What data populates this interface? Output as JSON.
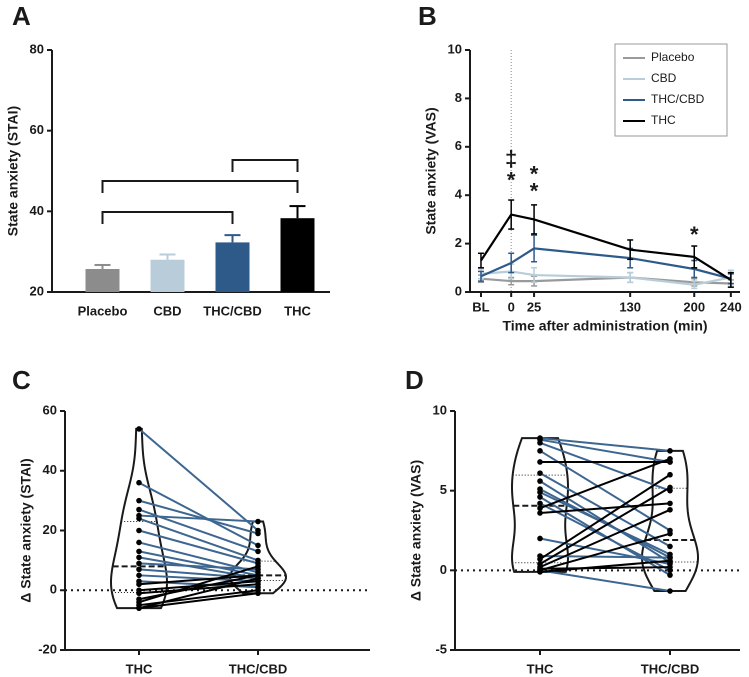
{
  "chart_data": [
    {
      "type": "bar",
      "label": "A",
      "ylabel": "State anxiety (STAI)",
      "categories": [
        "Placebo",
        "CBD",
        "THC/CBD",
        "THC"
      ],
      "values": [
        25.7,
        28,
        32.3,
        38.3
      ],
      "errors": [
        1,
        1.3,
        1.8,
        3
      ],
      "colors": [
        "#8c8c8c",
        "#b8cdd9",
        "#2e5a8a",
        "#000000"
      ],
      "ylim": [
        20,
        80
      ],
      "yticks": [
        20,
        40,
        60,
        80
      ]
    },
    {
      "type": "line",
      "label": "B",
      "ylabel": "State anxiety (VAS)",
      "xlabel": "Time after administration (min)",
      "x": [
        -33,
        0,
        25,
        130,
        200,
        240
      ],
      "xlim": [
        -45,
        250
      ],
      "xticks": [
        {
          "value": -33,
          "label": "BL"
        },
        0,
        25,
        130,
        200,
        240
      ],
      "ylim": [
        0,
        10
      ],
      "yticks": [
        0,
        2,
        4,
        6,
        8,
        10
      ],
      "vline": 0,
      "legend": "upper right",
      "series": [
        {
          "name": "Placebo",
          "color": "#9a9a9a",
          "values": [
            0.55,
            0.45,
            0.45,
            0.6,
            0.4,
            0.35
          ],
          "errors": [
            0.15,
            0.15,
            0.2,
            0.2,
            0.15,
            0.15
          ]
        },
        {
          "name": "CBD",
          "color": "#b8cdd9",
          "values": [
            0.75,
            0.85,
            0.7,
            0.6,
            0.3,
            0.6
          ],
          "errors": [
            0.2,
            0.3,
            0.3,
            0.2,
            0.15,
            0.3
          ]
        },
        {
          "name": "THC/CBD",
          "color": "#2e5a8a",
          "values": [
            0.65,
            1.2,
            1.8,
            1.4,
            0.95,
            0.55
          ],
          "errors": [
            0.2,
            0.4,
            0.55,
            0.4,
            0.35,
            0.2
          ]
        },
        {
          "name": "THC",
          "color": "#000000",
          "values": [
            1.3,
            3.2,
            3.0,
            1.75,
            1.45,
            0.5
          ],
          "errors": [
            0.3,
            0.6,
            0.6,
            0.4,
            0.45,
            0.3
          ]
        }
      ],
      "annotations": [
        {
          "text": "‡",
          "x": 0,
          "y": 5.45,
          "color": "#000000"
        },
        {
          "text": "*",
          "x": 0,
          "y": 4.55,
          "color": "#000000"
        },
        {
          "text": "*",
          "x": 25,
          "y": 4.8,
          "color": "#3d6691"
        },
        {
          "text": "*",
          "x": 25,
          "y": 4.1,
          "color": "#000000"
        },
        {
          "text": "*",
          "x": 200,
          "y": 2.3,
          "color": "#000000"
        }
      ]
    },
    {
      "type": "violin",
      "label": "C",
      "ylabel": "Δ State anxiety (STAI)",
      "categories": [
        "THC",
        "THC/CBD"
      ],
      "ylim": [
        -20,
        60
      ],
      "yticks": [
        -20,
        0,
        20,
        40,
        60
      ],
      "refline": 0,
      "decrease_color": "#3d6691",
      "increase_color": "#000000",
      "groups": [
        [
          54,
          36,
          30,
          27,
          25,
          24,
          20,
          16,
          13,
          11,
          9,
          7,
          5,
          3,
          2,
          0,
          -1,
          -3,
          -5,
          -6,
          -6,
          -4
        ],
        [
          20,
          15,
          19,
          13,
          23,
          10,
          9,
          6,
          5,
          4,
          7,
          4,
          3,
          1,
          5,
          3,
          2,
          5,
          0,
          4,
          -1,
          8
        ]
      ]
    },
    {
      "type": "violin",
      "label": "D",
      "ylabel": "Δ State anxiety (VAS)",
      "categories": [
        "THC",
        "THC/CBD"
      ],
      "ylim": [
        -5,
        10
      ],
      "yticks": [
        -5,
        0,
        5,
        10
      ],
      "refline": 0,
      "decrease_color": "#3d6691",
      "increase_color": "#000000",
      "groups": [
        [
          8.3,
          8.2,
          8.0,
          7.5,
          6.8,
          6.1,
          5.6,
          5.1,
          4.9,
          4.6,
          4.2,
          3.9,
          3.6,
          2.0,
          0.9,
          0.7,
          0.4,
          0.1,
          0.0,
          0.0,
          -0.1,
          0.2
        ],
        [
          7.5,
          6.8,
          5.0,
          2.5,
          6.8,
          1.5,
          0.5,
          0.8,
          1.0,
          -0.3,
          0,
          7.0,
          4.2,
          0.4,
          0.8,
          6.0,
          5.2,
          0.2,
          2.3,
          -1.3,
          0.6,
          3.8
        ]
      ]
    }
  ]
}
